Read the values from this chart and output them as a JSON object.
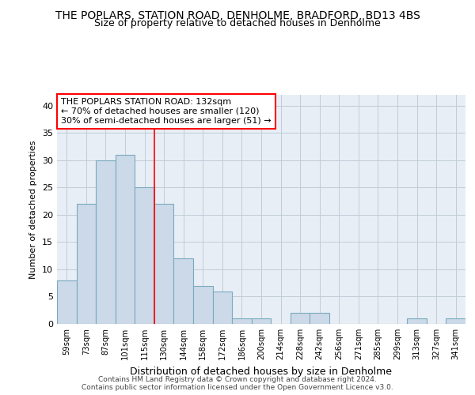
{
  "title": "THE POPLARS, STATION ROAD, DENHOLME, BRADFORD, BD13 4BS",
  "subtitle": "Size of property relative to detached houses in Denholme",
  "xlabel": "Distribution of detached houses by size in Denholme",
  "ylabel": "Number of detached properties",
  "categories": [
    "59sqm",
    "73sqm",
    "87sqm",
    "101sqm",
    "115sqm",
    "130sqm",
    "144sqm",
    "158sqm",
    "172sqm",
    "186sqm",
    "200sqm",
    "214sqm",
    "228sqm",
    "242sqm",
    "256sqm",
    "271sqm",
    "285sqm",
    "299sqm",
    "313sqm",
    "327sqm",
    "341sqm"
  ],
  "values": [
    8,
    22,
    30,
    31,
    25,
    22,
    12,
    7,
    6,
    1,
    1,
    0,
    2,
    2,
    0,
    0,
    0,
    0,
    1,
    0,
    1
  ],
  "bar_color": "#ccd9e8",
  "bar_edge_color": "#7aaabf",
  "highlight_line_index": 5,
  "annotation_text": "THE POPLARS STATION ROAD: 132sqm\n← 70% of detached houses are smaller (120)\n30% of semi-detached houses are larger (51) →",
  "ylim": [
    0,
    42
  ],
  "yticks": [
    0,
    5,
    10,
    15,
    20,
    25,
    30,
    35,
    40
  ],
  "grid_color": "#c0ccd8",
  "background_color": "#e8eef5",
  "footer_line1": "Contains HM Land Registry data © Crown copyright and database right 2024.",
  "footer_line2": "Contains public sector information licensed under the Open Government Licence v3.0."
}
